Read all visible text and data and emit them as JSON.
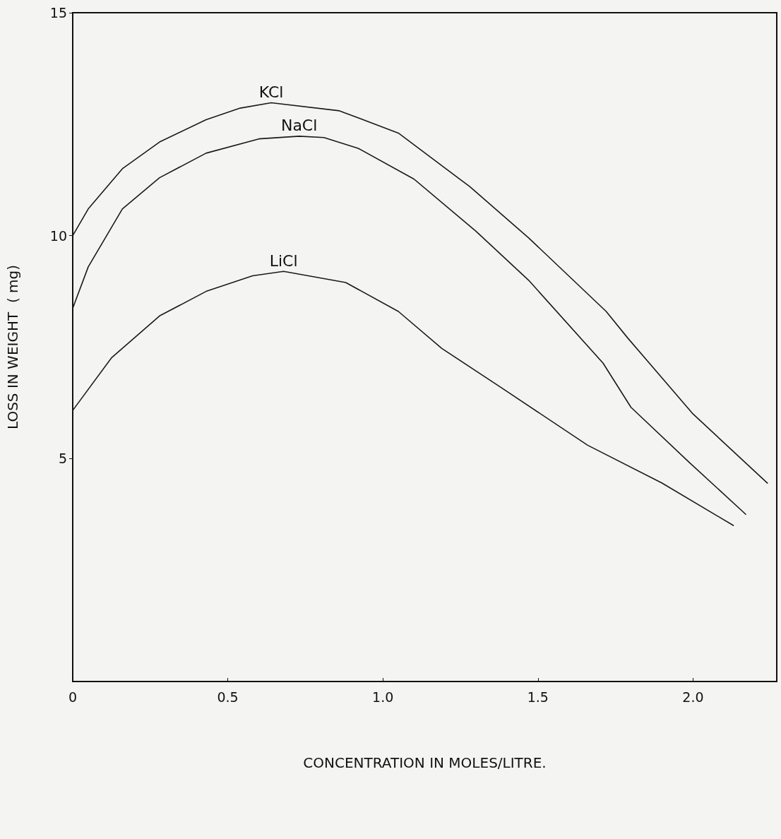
{
  "chart_data": {
    "type": "line",
    "xlabel": "CONCENTRATION IN MOLES/LITRE.",
    "ylabel": "LOSS IN WEIGHT  ( mg)",
    "xlim": [
      0,
      2.27
    ],
    "ylim": [
      0,
      15
    ],
    "xticks": [
      0,
      0.5,
      {
        "value": 1,
        "label": "1.0"
      },
      1.5,
      {
        "value": 2,
        "label": "2.0"
      }
    ],
    "yticks": [
      5,
      10,
      15
    ],
    "grid": false,
    "legend": false,
    "marker": "none",
    "series": [
      {
        "name": "KCl",
        "color": "#1a1a1a",
        "x": [
          0,
          0.05,
          0.16,
          0.28,
          0.43,
          0.54,
          0.64,
          0.86,
          1.05,
          1.28,
          1.47,
          1.72,
          1.79,
          2.0,
          2.24
        ],
        "values": [
          10.0,
          10.6,
          11.5,
          12.1,
          12.6,
          12.86,
          12.98,
          12.8,
          12.3,
          11.1,
          9.95,
          8.3,
          7.7,
          6.0,
          4.45
        ]
      },
      {
        "name": "NaCl",
        "color": "#1a1a1a",
        "x": [
          0,
          0.05,
          0.16,
          0.28,
          0.43,
          0.6,
          0.73,
          0.81,
          0.92,
          1.1,
          1.3,
          1.47,
          1.71,
          1.8,
          1.99,
          2.17
        ],
        "values": [
          8.37,
          9.3,
          10.6,
          11.3,
          11.85,
          12.17,
          12.23,
          12.2,
          11.96,
          11.27,
          10.1,
          9.0,
          7.14,
          6.15,
          4.9,
          3.75
        ]
      },
      {
        "name": "LiCl",
        "color": "#1a1a1a",
        "x": [
          0,
          0.125,
          0.28,
          0.43,
          0.58,
          0.68,
          0.88,
          1.05,
          1.19,
          1.38,
          1.66,
          1.9,
          2.13
        ],
        "values": [
          6.08,
          7.26,
          8.2,
          8.75,
          9.1,
          9.2,
          8.95,
          8.3,
          7.47,
          6.6,
          5.3,
          4.45,
          3.5
        ]
      }
    ]
  }
}
